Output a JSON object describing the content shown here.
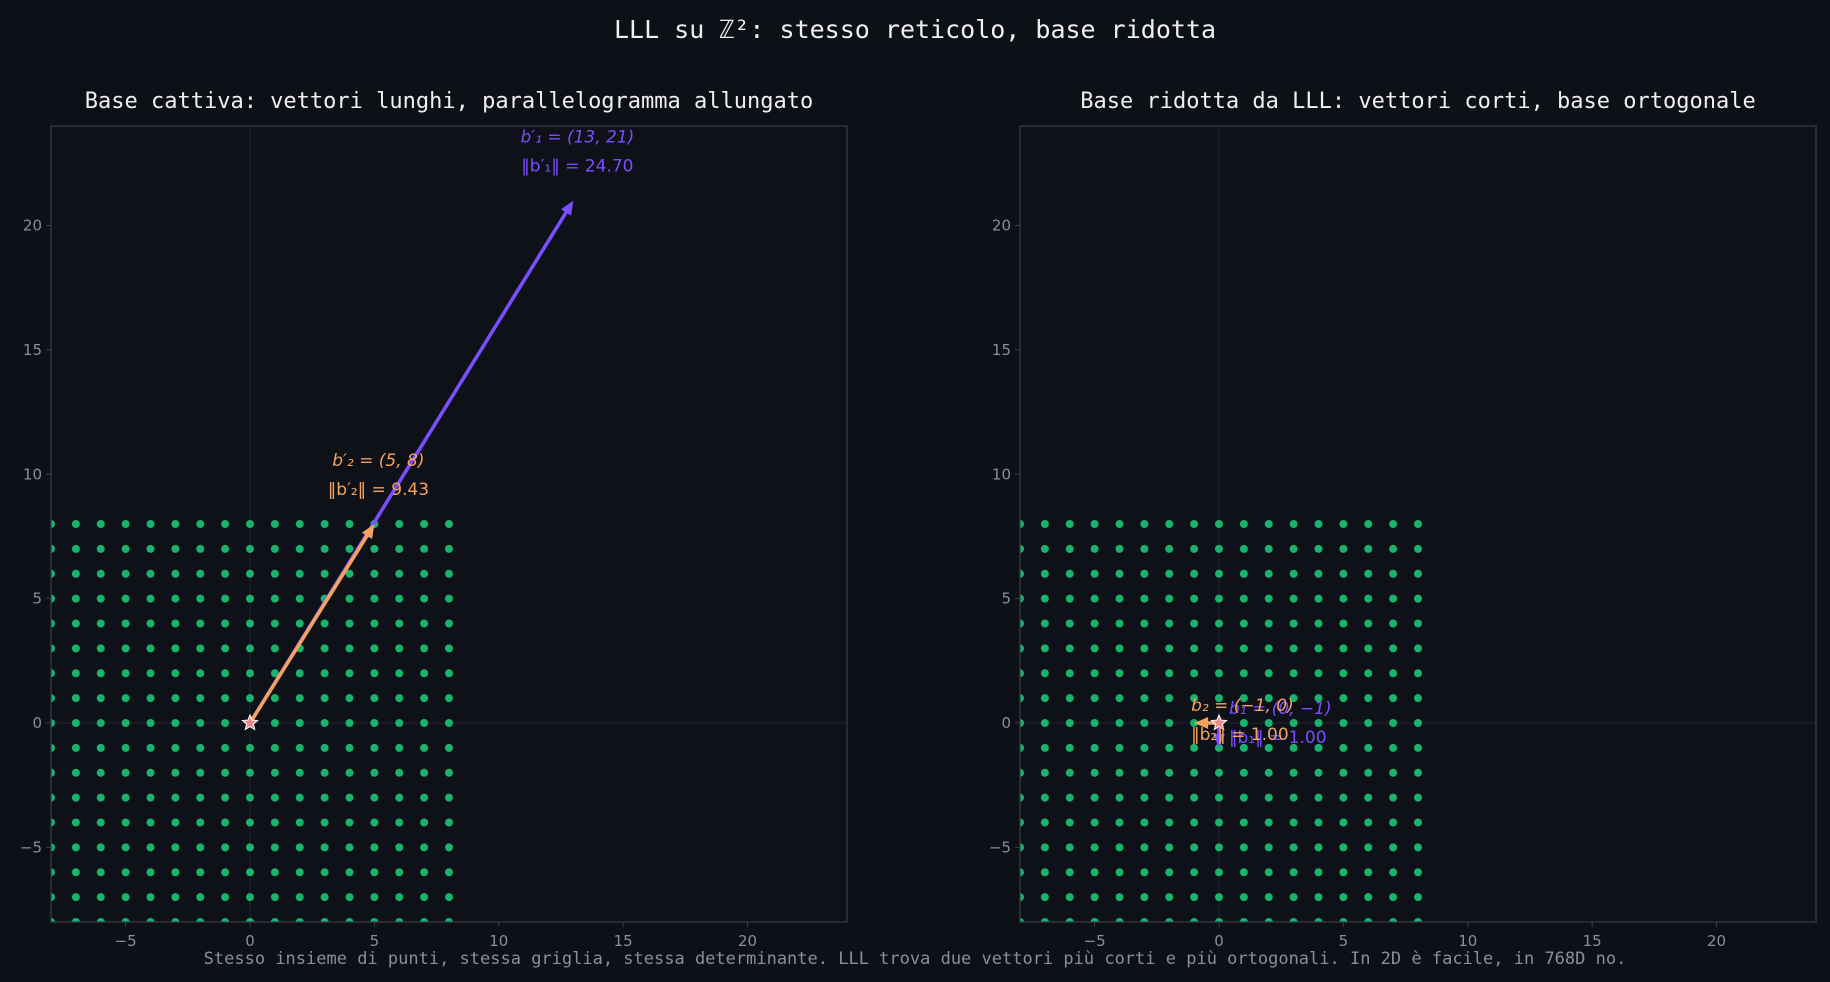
{
  "figure": {
    "suptitle": "LLL su ℤ²: stesso reticolo, base ridotta",
    "footer": "Stesso insieme di punti, stessa griglia, stessa determinante. LLL trova due vettori più corti e più ortogonali. In 2D è facile, in 768D no.",
    "colors": {
      "background": "#0d1016",
      "axes_bg": "#0e1118",
      "spine": "#3a3e47",
      "zero_line": "#1e222b",
      "tick_text": "#8a8f98",
      "title_text": "#f0f0f0",
      "footer_text": "#8a8f98",
      "lattice_point": "#19b36b",
      "b1": "#7c4dff",
      "b2": "#f4a261",
      "origin_marker": "#f08a8a"
    }
  },
  "chart_data": [
    {
      "type": "scatter",
      "title": "Base cattiva: vettori lunghi, parallelogramma allungato",
      "xlim": [
        -8,
        24
      ],
      "ylim": [
        -8,
        24
      ],
      "xticks": [
        -5,
        0,
        5,
        10,
        15,
        20
      ],
      "yticks": [
        -5,
        0,
        5,
        10,
        15,
        20
      ],
      "xtick_labels": [
        "−5",
        "0",
        "5",
        "10",
        "15",
        "20"
      ],
      "ytick_labels": [
        "−5",
        "0",
        "5",
        "10",
        "15",
        "20"
      ],
      "lattice": {
        "x_range": [
          -8,
          8
        ],
        "y_range": [
          -8,
          8
        ],
        "step": 1
      },
      "vectors": [
        {
          "name": "b1",
          "x": 13,
          "y": 21,
          "label_line1": "b′₁ = (13, 21)",
          "label_line2": "‖b′₁‖ = 24.70"
        },
        {
          "name": "b2",
          "x": 5,
          "y": 8,
          "label_line1": "b′₂ = (5, 8)",
          "label_line2": "‖b′₂‖ = 9.43"
        }
      ],
      "origin": [
        0,
        0
      ]
    },
    {
      "type": "scatter",
      "title": "Base ridotta da LLL: vettori corti, base ortogonale",
      "xlim": [
        -8,
        24
      ],
      "ylim": [
        -8,
        24
      ],
      "xticks": [
        -5,
        0,
        5,
        10,
        15,
        20
      ],
      "yticks": [
        -5,
        0,
        5,
        10,
        15,
        20
      ],
      "xtick_labels": [
        "−5",
        "0",
        "5",
        "10",
        "15",
        "20"
      ],
      "ytick_labels": [
        "−5",
        "0",
        "5",
        "10",
        "15",
        "20"
      ],
      "lattice": {
        "x_range": [
          -8,
          8
        ],
        "y_range": [
          -8,
          8
        ],
        "step": 1
      },
      "vectors": [
        {
          "name": "b1",
          "x": 0,
          "y": -1,
          "label_line1": "b₁ = (0, −1)",
          "label_line2": "‖b₁‖ = 1.00"
        },
        {
          "name": "b2",
          "x": -1,
          "y": 0,
          "label_line1": "b₂ = (−1, 0)",
          "label_line2": "‖b₂‖ = 1.00"
        }
      ],
      "origin": [
        0,
        0
      ]
    }
  ]
}
